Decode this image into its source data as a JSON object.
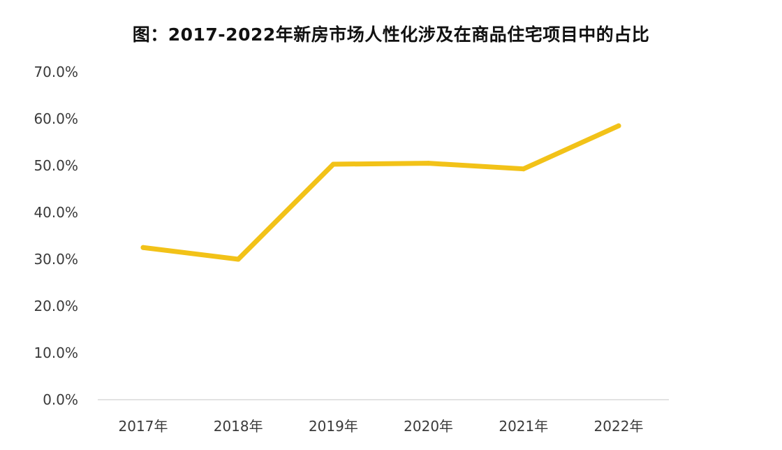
{
  "chart_data": {
    "type": "line",
    "title": "图：2017-2022年新房市场人性化涉及在商品住宅项目中的占比",
    "xlabel": "",
    "ylabel": "",
    "categories": [
      "2017年",
      "2018年",
      "2019年",
      "2020年",
      "2021年",
      "2022年"
    ],
    "series": [
      {
        "values": [
          32.5,
          30.0,
          50.3,
          50.5,
          49.3,
          58.5
        ],
        "color": "#F2C218"
      }
    ],
    "ylim": [
      0,
      70
    ],
    "yticks": [
      0,
      10,
      20,
      30,
      40,
      50,
      60,
      70
    ],
    "ytick_labels": [
      "0.0%",
      "10.0%",
      "20.0%",
      "30.0%",
      "40.0%",
      "50.0%",
      "60.0%",
      "70.0%"
    ],
    "grid": false,
    "legend": "none",
    "baseline_color": "#D9D9D9"
  }
}
